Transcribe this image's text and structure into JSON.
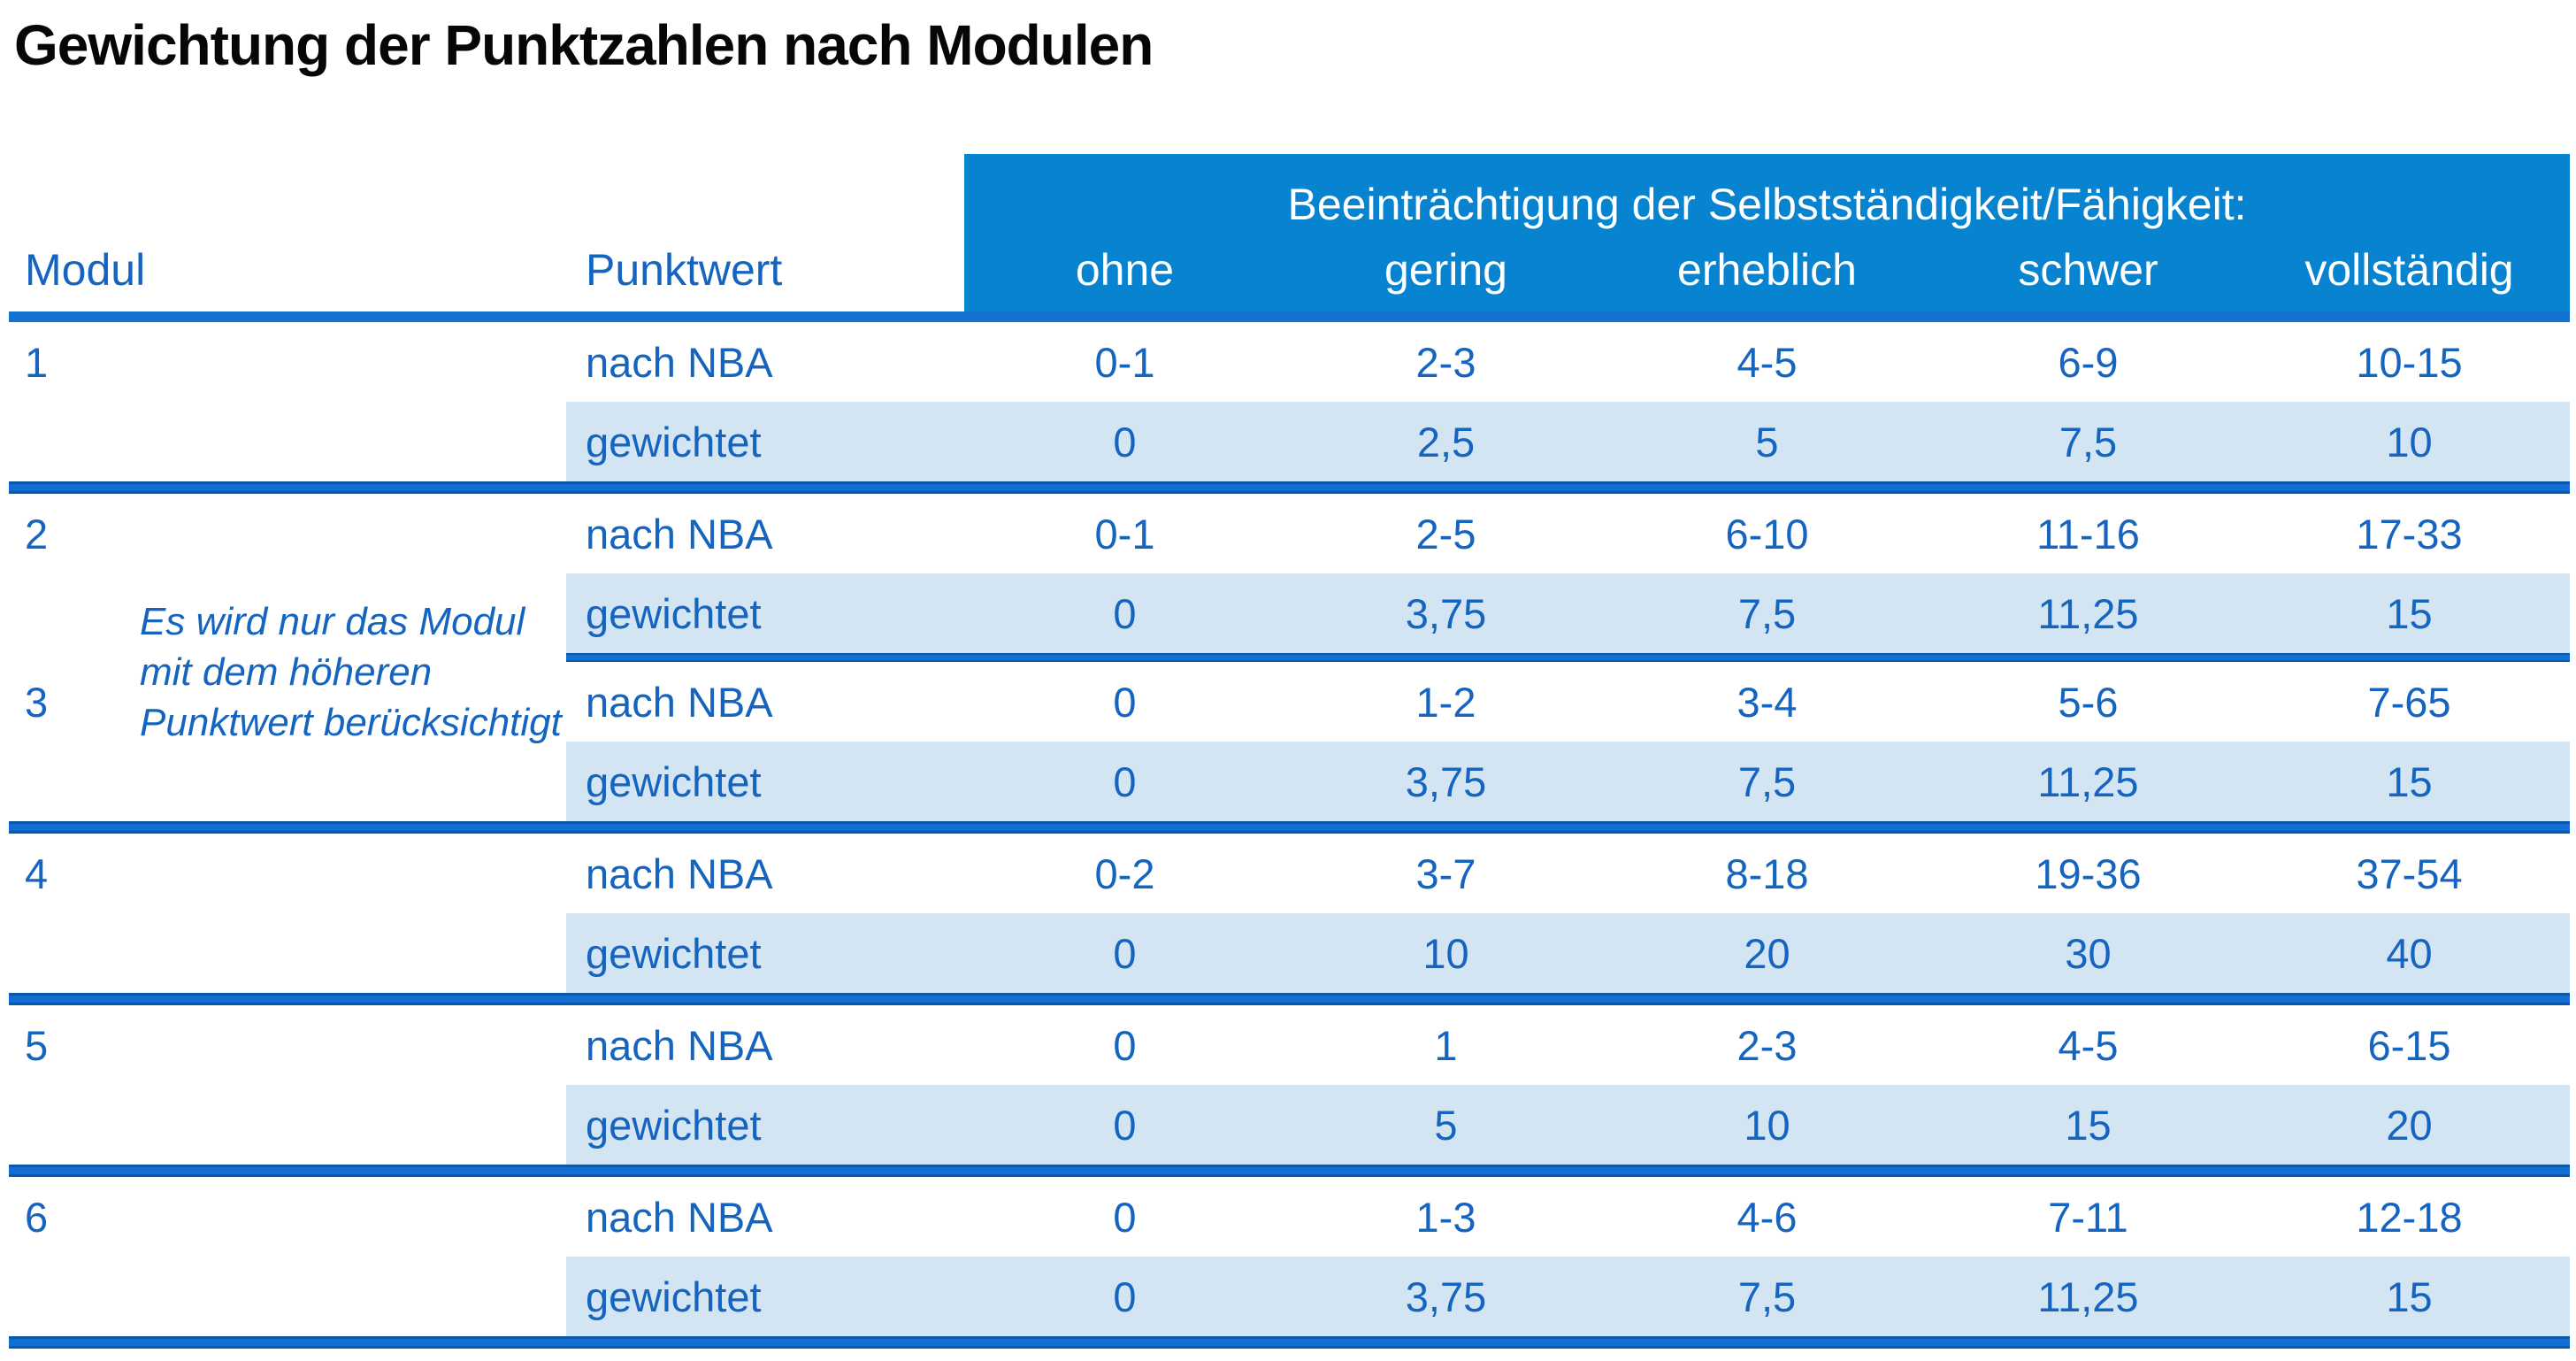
{
  "title": "Gewichtung der Punktzahlen nach Modulen",
  "colors": {
    "band_blue": "#0783d0",
    "text_blue": "#1464c0",
    "shade_blue": "#d3e5f3",
    "rule_blue": "#136ed3",
    "band_text": "#ffffff"
  },
  "table": {
    "band_title": "Beeinträchtigung der Selbstständigkeit/Fähigkeit:",
    "col_modul": "Modul",
    "col_punktwert": "Punktwert",
    "severity_levels": [
      "ohne",
      "gering",
      "erheblich",
      "schwer",
      "vollständig"
    ],
    "row_label_nba": "nach NBA",
    "row_label_weighted": "gewichtet",
    "note_lines": [
      "Es wird nur das Modul",
      "mit dem höheren",
      "Punktwert berücksichtigt"
    ],
    "modules": [
      {
        "id": "1",
        "nba": [
          "0-1",
          "2-3",
          "4-5",
          "6-9",
          "10-15"
        ],
        "weighted": [
          "0",
          "2,5",
          "5",
          "7,5",
          "10"
        ]
      },
      {
        "id": "2",
        "nba": [
          "0-1",
          "2-5",
          "6-10",
          "11-16",
          "17-33"
        ],
        "weighted": [
          "0",
          "3,75",
          "7,5",
          "11,25",
          "15"
        ]
      },
      {
        "id": "3",
        "nba": [
          "0",
          "1-2",
          "3-4",
          "5-6",
          "7-65"
        ],
        "weighted": [
          "0",
          "3,75",
          "7,5",
          "11,25",
          "15"
        ]
      },
      {
        "id": "4",
        "nba": [
          "0-2",
          "3-7",
          "8-18",
          "19-36",
          "37-54"
        ],
        "weighted": [
          "0",
          "10",
          "20",
          "30",
          "40"
        ]
      },
      {
        "id": "5",
        "nba": [
          "0",
          "1",
          "2-3",
          "4-5",
          "6-15"
        ],
        "weighted": [
          "0",
          "5",
          "10",
          "15",
          "20"
        ]
      },
      {
        "id": "6",
        "nba": [
          "0",
          "1-3",
          "4-6",
          "7-11",
          "12-18"
        ],
        "weighted": [
          "0",
          "3,75",
          "7,5",
          "11,25",
          "15"
        ]
      }
    ]
  }
}
